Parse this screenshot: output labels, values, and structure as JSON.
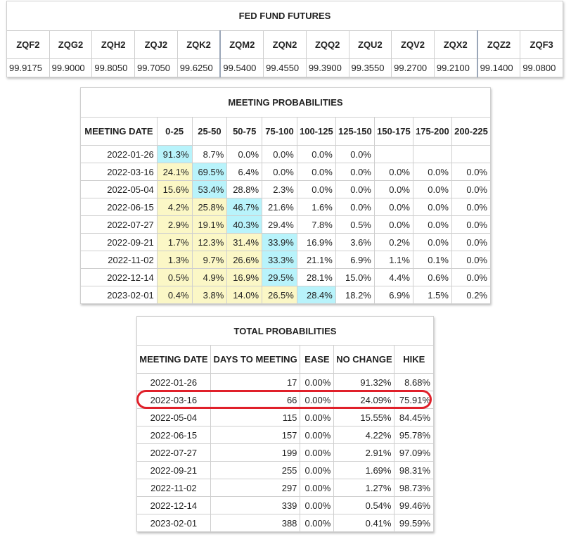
{
  "futures": {
    "title": "FED FUND FUTURES",
    "contracts": [
      {
        "code": "ZQF2",
        "price": "99.9175"
      },
      {
        "code": "ZQG2",
        "price": "99.9000"
      },
      {
        "code": "ZQH2",
        "price": "99.8050"
      },
      {
        "code": "ZQJ2",
        "price": "99.7050"
      },
      {
        "code": "ZQK2",
        "price": "99.6250"
      },
      {
        "code": "ZQM2",
        "price": "99.5400"
      },
      {
        "code": "ZQN2",
        "price": "99.4550"
      },
      {
        "code": "ZQQ2",
        "price": "99.3900"
      },
      {
        "code": "ZQU2",
        "price": "99.3550"
      },
      {
        "code": "ZQV2",
        "price": "99.2700"
      },
      {
        "code": "ZQX2",
        "price": "99.2100"
      },
      {
        "code": "ZQZ2",
        "price": "99.1400"
      },
      {
        "code": "ZQF3",
        "price": "99.0800"
      }
    ]
  },
  "meeting_probabilities": {
    "title": "MEETING PROBABILITIES",
    "headers": [
      "MEETING DATE",
      "0-25",
      "25-50",
      "50-75",
      "75-100",
      "100-125",
      "125-150",
      "150-175",
      "175-200",
      "200-225"
    ],
    "rows": [
      {
        "date": "2022-01-26",
        "cells": [
          "91.3%",
          "8.7%",
          "0.0%",
          "0.0%",
          "0.0%",
          "0.0%",
          "",
          "",
          ""
        ],
        "shade": [
          "b",
          "",
          "",
          "",
          "",
          "",
          "",
          "",
          ""
        ]
      },
      {
        "date": "2022-03-16",
        "cells": [
          "24.1%",
          "69.5%",
          "6.4%",
          "0.0%",
          "0.0%",
          "0.0%",
          "0.0%",
          "0.0%",
          "0.0%"
        ],
        "shade": [
          "y",
          "b",
          "",
          "",
          "",
          "",
          "",
          "",
          ""
        ]
      },
      {
        "date": "2022-05-04",
        "cells": [
          "15.6%",
          "53.4%",
          "28.8%",
          "2.3%",
          "0.0%",
          "0.0%",
          "0.0%",
          "0.0%",
          "0.0%"
        ],
        "shade": [
          "y",
          "b",
          "",
          "",
          "",
          "",
          "",
          "",
          ""
        ]
      },
      {
        "date": "2022-06-15",
        "cells": [
          "4.2%",
          "25.8%",
          "46.7%",
          "21.6%",
          "1.6%",
          "0.0%",
          "0.0%",
          "0.0%",
          "0.0%"
        ],
        "shade": [
          "y",
          "y",
          "b",
          "",
          "",
          "",
          "",
          "",
          ""
        ]
      },
      {
        "date": "2022-07-27",
        "cells": [
          "2.9%",
          "19.1%",
          "40.3%",
          "29.4%",
          "7.8%",
          "0.5%",
          "0.0%",
          "0.0%",
          "0.0%"
        ],
        "shade": [
          "y",
          "y",
          "b",
          "",
          "",
          "",
          "",
          "",
          ""
        ]
      },
      {
        "date": "2022-09-21",
        "cells": [
          "1.7%",
          "12.3%",
          "31.4%",
          "33.9%",
          "16.9%",
          "3.6%",
          "0.2%",
          "0.0%",
          "0.0%"
        ],
        "shade": [
          "y",
          "y",
          "y",
          "b",
          "",
          "",
          "",
          "",
          ""
        ]
      },
      {
        "date": "2022-11-02",
        "cells": [
          "1.3%",
          "9.7%",
          "26.6%",
          "33.3%",
          "21.1%",
          "6.9%",
          "1.1%",
          "0.1%",
          "0.0%"
        ],
        "shade": [
          "y",
          "y",
          "y",
          "b",
          "",
          "",
          "",
          "",
          ""
        ]
      },
      {
        "date": "2022-12-14",
        "cells": [
          "0.5%",
          "4.9%",
          "16.9%",
          "29.5%",
          "28.1%",
          "15.0%",
          "4.4%",
          "0.6%",
          "0.0%"
        ],
        "shade": [
          "y",
          "y",
          "y",
          "b",
          "",
          "",
          "",
          "",
          ""
        ]
      },
      {
        "date": "2023-02-01",
        "cells": [
          "0.4%",
          "3.8%",
          "14.0%",
          "26.5%",
          "28.4%",
          "18.2%",
          "6.9%",
          "1.5%",
          "0.2%"
        ],
        "shade": [
          "y",
          "y",
          "y",
          "y",
          "b",
          "",
          "",
          "",
          ""
        ]
      }
    ]
  },
  "total_probabilities": {
    "title": "TOTAL PROBABILITIES",
    "headers": [
      "MEETING DATE",
      "DAYS TO MEETING",
      "EASE",
      "NO CHANGE",
      "HIKE"
    ],
    "rows": [
      {
        "date": "2022-01-26",
        "days": "17",
        "ease": "0.00%",
        "no_change": "91.32%",
        "hike": "8.68%"
      },
      {
        "date": "2022-03-16",
        "days": "66",
        "ease": "0.00%",
        "no_change": "24.09%",
        "hike": "75.91%"
      },
      {
        "date": "2022-05-04",
        "days": "115",
        "ease": "0.00%",
        "no_change": "15.55%",
        "hike": "84.45%"
      },
      {
        "date": "2022-06-15",
        "days": "157",
        "ease": "0.00%",
        "no_change": "4.22%",
        "hike": "95.78%"
      },
      {
        "date": "2022-07-27",
        "days": "199",
        "ease": "0.00%",
        "no_change": "2.91%",
        "hike": "97.09%"
      },
      {
        "date": "2022-09-21",
        "days": "255",
        "ease": "0.00%",
        "no_change": "1.69%",
        "hike": "98.31%"
      },
      {
        "date": "2022-11-02",
        "days": "297",
        "ease": "0.00%",
        "no_change": "1.27%",
        "hike": "98.73%"
      },
      {
        "date": "2022-12-14",
        "days": "339",
        "ease": "0.00%",
        "no_change": "0.54%",
        "hike": "99.46%"
      },
      {
        "date": "2023-02-01",
        "days": "388",
        "ease": "0.00%",
        "no_change": "0.41%",
        "hike": "99.59%"
      }
    ]
  },
  "colors": {
    "low_probability_fill": "#fbf7c6",
    "peak_probability_fill": "#b8f3fb",
    "highlight_ring": "#e0202a"
  }
}
